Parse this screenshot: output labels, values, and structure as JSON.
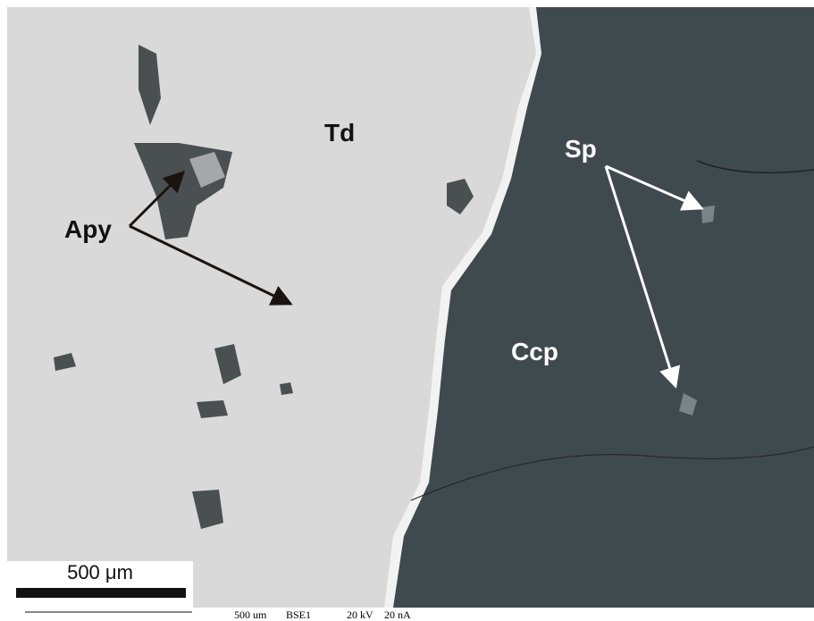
{
  "labels": {
    "td": "Td",
    "apy": "Apy",
    "sp": "Sp",
    "ccp": "Ccp"
  },
  "scale_bar": "500 μm",
  "footer": [
    "500 um",
    "BSE1",
    "20 kV",
    "20 nA"
  ]
}
